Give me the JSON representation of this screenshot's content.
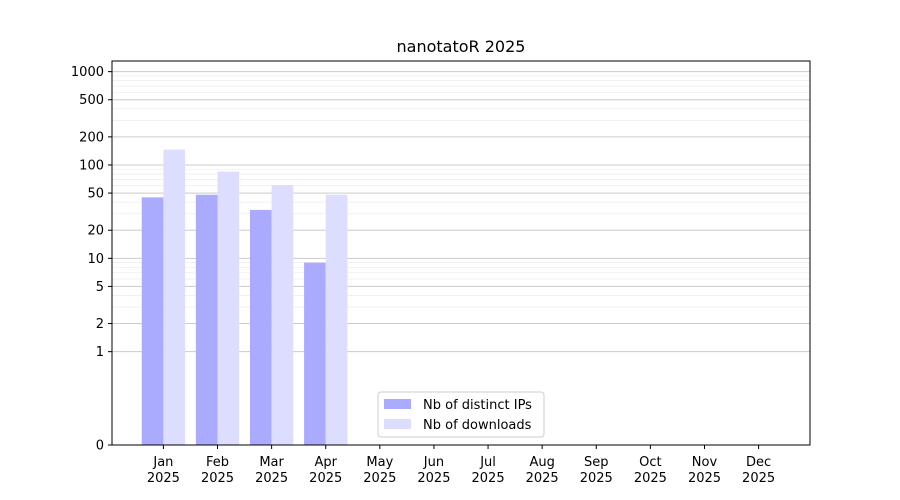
{
  "chart_data": {
    "type": "bar",
    "title": "nanotatoR 2025",
    "xlabel": "",
    "ylabel": "",
    "y_scale": "symlog",
    "ylim": [
      0,
      1300
    ],
    "y_ticks": [
      0,
      1,
      2,
      5,
      10,
      20,
      50,
      100,
      200,
      500,
      1000
    ],
    "grid": true,
    "legend_position": "lower-center",
    "categories": [
      [
        "Jan",
        "2025"
      ],
      [
        "Feb",
        "2025"
      ],
      [
        "Mar",
        "2025"
      ],
      [
        "Apr",
        "2025"
      ],
      [
        "May",
        "2025"
      ],
      [
        "Jun",
        "2025"
      ],
      [
        "Jul",
        "2025"
      ],
      [
        "Aug",
        "2025"
      ],
      [
        "Sep",
        "2025"
      ],
      [
        "Oct",
        "2025"
      ],
      [
        "Nov",
        "2025"
      ],
      [
        "Dec",
        "2025"
      ]
    ],
    "series": [
      {
        "name": "Nb of distinct IPs",
        "color": "#aaaaff",
        "values": [
          45,
          48,
          33,
          9,
          0,
          0,
          0,
          0,
          0,
          0,
          0,
          0
        ]
      },
      {
        "name": "Nb of downloads",
        "color": "#ddddff",
        "values": [
          146,
          85,
          61,
          48,
          0,
          0,
          0,
          0,
          0,
          0,
          0,
          0
        ]
      }
    ]
  }
}
